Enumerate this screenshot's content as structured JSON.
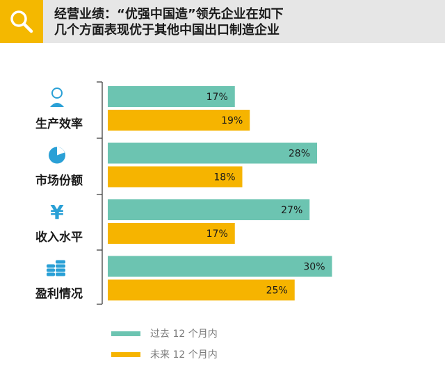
{
  "header": {
    "title_line1": "经营业绩：“优强中国造”领先企业在如下",
    "title_line2": "几个方面表现优于其他中国出口制造企业",
    "icon": "search-icon"
  },
  "colors": {
    "past": "#6cc4b1",
    "future": "#f6b400",
    "accent": "#f4b800",
    "text": "#1a1a1a",
    "icon": "#2aa0d6"
  },
  "chart_data": {
    "type": "bar",
    "orientation": "horizontal",
    "categories": [
      "生产效率",
      "市场份额",
      "收入水平",
      "盈利情况"
    ],
    "category_icons": [
      "clock-person-icon",
      "pie-chart-icon",
      "yen-icon",
      "coin-stack-icon"
    ],
    "series": [
      {
        "name": "过去 12 个月内",
        "values": [
          17,
          28,
          27,
          30
        ],
        "labels": [
          "17%",
          "28%",
          "27%",
          "30%"
        ]
      },
      {
        "name": "未来 12 个月内",
        "values": [
          19,
          18,
          17,
          25
        ],
        "labels": [
          "19%",
          "18%",
          "17%",
          "25%"
        ]
      }
    ],
    "xlim": [
      0,
      30
    ],
    "legend": "bottom-left",
    "grid": false
  }
}
